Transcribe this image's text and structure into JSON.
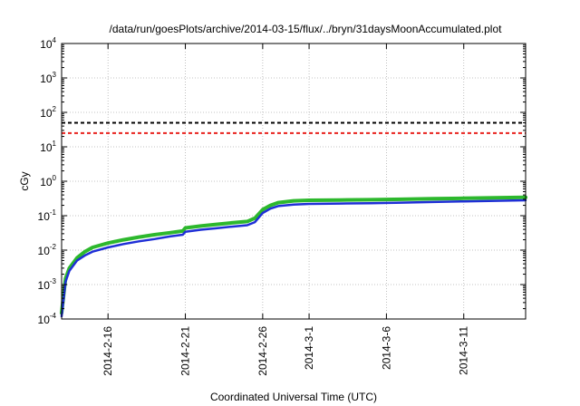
{
  "chart_data": {
    "type": "line",
    "title": "/data/run/goesPlots/archive/2014-03-15/flux/../bryn/31daysMoonAccumulated.plot",
    "xlabel": "Coordinated Universal Time (UTC)",
    "ylabel": "cGy",
    "yscale": "log",
    "ylim": [
      0.0001,
      10000
    ],
    "xlim": [
      "2014-02-13",
      "2014-03-15"
    ],
    "grid": true,
    "x_ticks": [
      {
        "date": "2014-02-16",
        "label": "2014-2-16"
      },
      {
        "date": "2014-02-21",
        "label": "2014-2-21"
      },
      {
        "date": "2014-02-26",
        "label": "2014-2-26"
      },
      {
        "date": "2014-03-01",
        "label": "2014-3-1"
      },
      {
        "date": "2014-03-06",
        "label": "2014-3-6"
      },
      {
        "date": "2014-03-11",
        "label": "2014-3-11"
      }
    ],
    "y_ticks": [
      {
        "base": "10",
        "exp": "-4"
      },
      {
        "base": "10",
        "exp": "-3"
      },
      {
        "base": "10",
        "exp": "-2"
      },
      {
        "base": "10",
        "exp": "-1"
      },
      {
        "base": "10",
        "exp": "0"
      },
      {
        "base": "10",
        "exp": "1"
      },
      {
        "base": "10",
        "exp": "2"
      },
      {
        "base": "10",
        "exp": "3"
      },
      {
        "base": "10",
        "exp": "4"
      }
    ],
    "reference_lines": [
      {
        "value": 50,
        "color": "#000000",
        "style": "dashed"
      },
      {
        "value": 25,
        "color": "#e8211d",
        "style": "dashed"
      }
    ],
    "series": [
      {
        "color": "#2db82d",
        "x": [
          "2014-02-13",
          "2014-02-13T06:00",
          "2014-02-13T12:00",
          "2014-02-14",
          "2014-02-14T12:00",
          "2014-02-15",
          "2014-02-16",
          "2014-02-17",
          "2014-02-18",
          "2014-02-19",
          "2014-02-20",
          "2014-02-20T20:00",
          "2014-02-21",
          "2014-02-22",
          "2014-02-23",
          "2014-02-24",
          "2014-02-25",
          "2014-02-25T12:00",
          "2014-02-26",
          "2014-02-26T12:00",
          "2014-02-27",
          "2014-02-28",
          "2014-03-01",
          "2014-03-03",
          "2014-03-05",
          "2014-03-07",
          "2014-03-09",
          "2014-03-11",
          "2014-03-13",
          "2014-03-15"
        ],
        "y": [
          0.00015,
          0.0015,
          0.003,
          0.006,
          0.009,
          0.012,
          0.016,
          0.02,
          0.024,
          0.028,
          0.032,
          0.036,
          0.044,
          0.05,
          0.056,
          0.062,
          0.068,
          0.085,
          0.15,
          0.2,
          0.24,
          0.27,
          0.28,
          0.285,
          0.29,
          0.3,
          0.31,
          0.32,
          0.33,
          0.34
        ]
      },
      {
        "color": "#1f2fd6",
        "x": [
          "2014-02-13",
          "2014-02-13T06:00",
          "2014-02-13T12:00",
          "2014-02-14",
          "2014-02-14T12:00",
          "2014-02-15",
          "2014-02-16",
          "2014-02-17",
          "2014-02-18",
          "2014-02-19",
          "2014-02-20",
          "2014-02-20T20:00",
          "2014-02-21",
          "2014-02-22",
          "2014-02-23",
          "2014-02-24",
          "2014-02-25",
          "2014-02-25T12:00",
          "2014-02-26",
          "2014-02-26T12:00",
          "2014-02-27",
          "2014-02-28",
          "2014-03-01",
          "2014-03-03",
          "2014-03-05",
          "2014-03-07",
          "2014-03-09",
          "2014-03-11",
          "2014-03-13",
          "2014-03-15"
        ],
        "y": [
          0.00012,
          0.0012,
          0.0025,
          0.005,
          0.007,
          0.009,
          0.012,
          0.015,
          0.018,
          0.021,
          0.025,
          0.028,
          0.034,
          0.039,
          0.043,
          0.048,
          0.053,
          0.065,
          0.12,
          0.16,
          0.19,
          0.21,
          0.22,
          0.225,
          0.23,
          0.24,
          0.25,
          0.26,
          0.27,
          0.28
        ]
      }
    ]
  }
}
